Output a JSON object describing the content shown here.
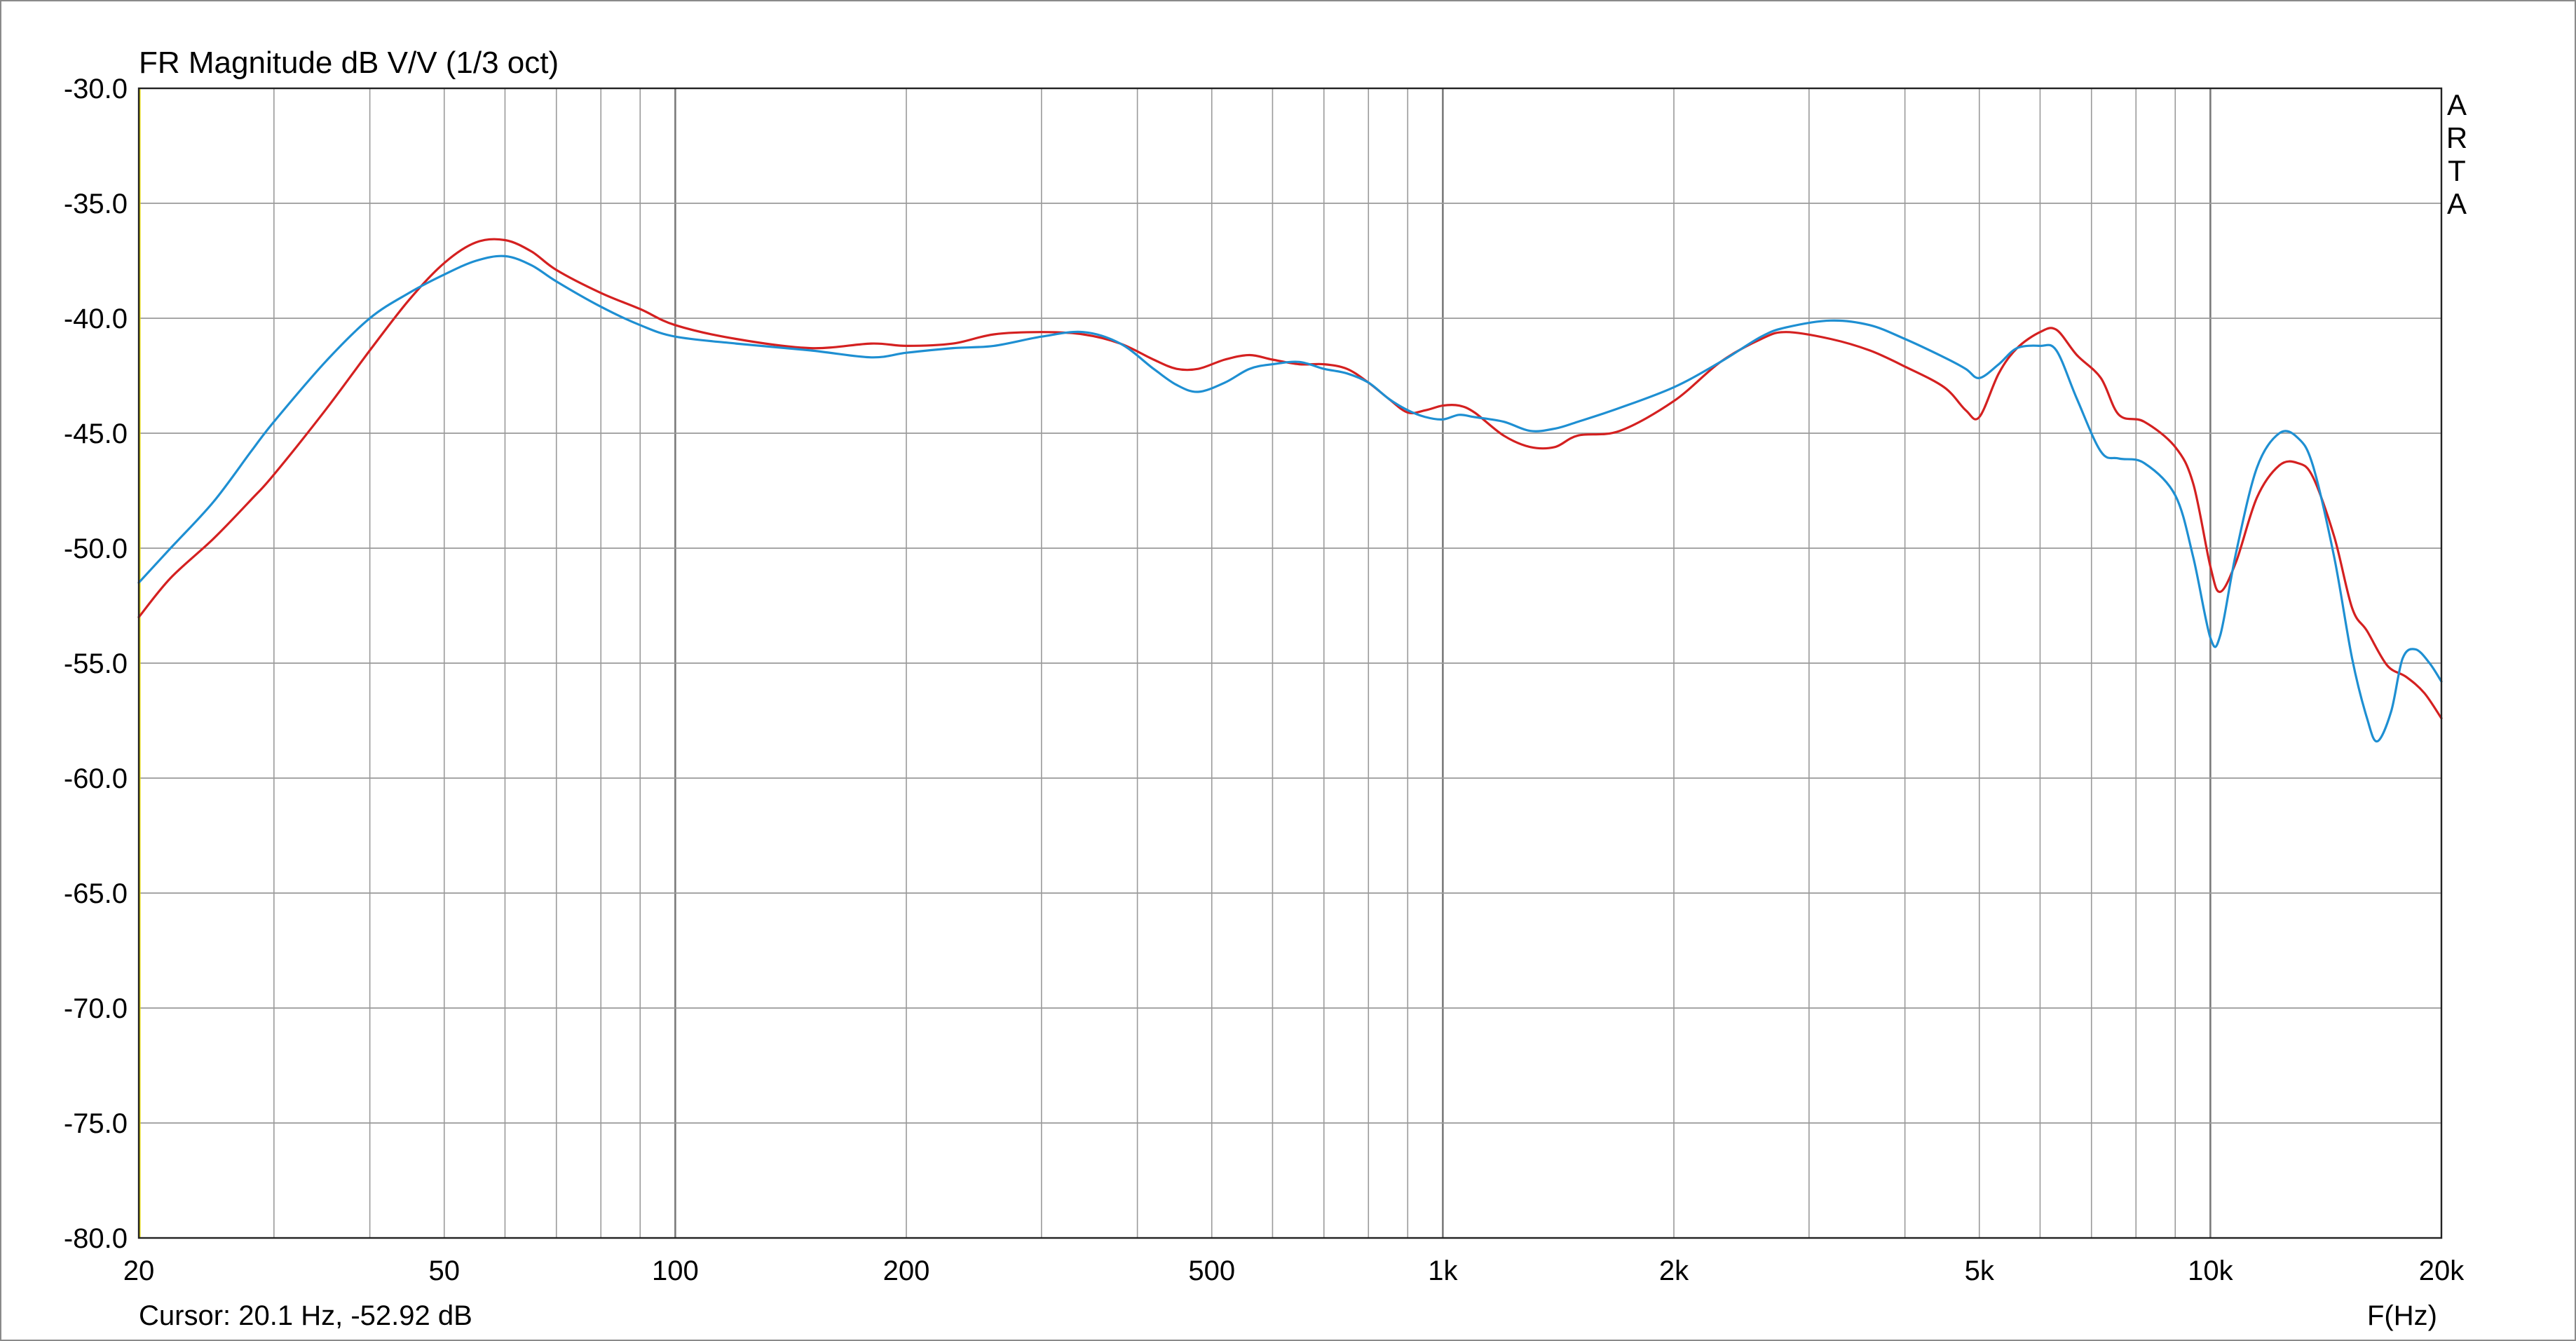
{
  "chart_data": {
    "type": "line",
    "title": "FR Magnitude dB V/V (1/3 oct)",
    "xlabel": "F(Hz)",
    "ylabel": "",
    "x_scale": "log",
    "xlim": [
      20,
      20000
    ],
    "ylim": [
      -80,
      -30
    ],
    "grid": true,
    "x_major_ticks": [
      100,
      1000,
      10000
    ],
    "x_minor_ticks": [
      30,
      40,
      50,
      60,
      70,
      80,
      90,
      200,
      300,
      400,
      500,
      600,
      700,
      800,
      900,
      2000,
      3000,
      4000,
      5000,
      6000,
      7000,
      8000,
      9000
    ],
    "x_tick_labels": [
      {
        "value": 20,
        "label": "20"
      },
      {
        "value": 50,
        "label": "50"
      },
      {
        "value": 100,
        "label": "100"
      },
      {
        "value": 200,
        "label": "200"
      },
      {
        "value": 500,
        "label": "500"
      },
      {
        "value": 1000,
        "label": "1k"
      },
      {
        "value": 2000,
        "label": "2k"
      },
      {
        "value": 5000,
        "label": "5k"
      },
      {
        "value": 10000,
        "label": "10k"
      },
      {
        "value": 20000,
        "label": "20k"
      }
    ],
    "y_ticks": [
      -30,
      -35,
      -40,
      -45,
      -50,
      -55,
      -60,
      -65,
      -70,
      -75,
      -80
    ],
    "y_tick_labels": [
      "-30.0",
      "-35.0",
      "-40.0",
      "-45.0",
      "-50.0",
      "-55.0",
      "-60.0",
      "-65.0",
      "-70.0",
      "-75.0",
      "-80.0"
    ],
    "series": [
      {
        "color": "#d42020",
        "points": [
          [
            20,
            -53.0
          ],
          [
            22,
            -51.3
          ],
          [
            25,
            -49.6
          ],
          [
            28,
            -47.9
          ],
          [
            30,
            -46.8
          ],
          [
            35,
            -44.0
          ],
          [
            40,
            -41.4
          ],
          [
            45,
            -39.2
          ],
          [
            50,
            -37.6
          ],
          [
            55,
            -36.7
          ],
          [
            60,
            -36.6
          ],
          [
            65,
            -37.1
          ],
          [
            70,
            -37.9
          ],
          [
            80,
            -38.9
          ],
          [
            90,
            -39.6
          ],
          [
            100,
            -40.3
          ],
          [
            120,
            -40.9
          ],
          [
            150,
            -41.3
          ],
          [
            180,
            -41.1
          ],
          [
            200,
            -41.2
          ],
          [
            230,
            -41.1
          ],
          [
            260,
            -40.7
          ],
          [
            300,
            -40.6
          ],
          [
            340,
            -40.7
          ],
          [
            380,
            -41.1
          ],
          [
            420,
            -41.8
          ],
          [
            450,
            -42.2
          ],
          [
            480,
            -42.2
          ],
          [
            520,
            -41.8
          ],
          [
            560,
            -41.6
          ],
          [
            600,
            -41.8
          ],
          [
            650,
            -42.0
          ],
          [
            700,
            -42.0
          ],
          [
            750,
            -42.2
          ],
          [
            800,
            -42.8
          ],
          [
            850,
            -43.5
          ],
          [
            900,
            -44.1
          ],
          [
            950,
            -44.0
          ],
          [
            1000,
            -43.8
          ],
          [
            1050,
            -43.8
          ],
          [
            1100,
            -44.1
          ],
          [
            1200,
            -45.1
          ],
          [
            1300,
            -45.6
          ],
          [
            1400,
            -45.6
          ],
          [
            1500,
            -45.1
          ],
          [
            1700,
            -44.9
          ],
          [
            2000,
            -43.6
          ],
          [
            2300,
            -41.9
          ],
          [
            2600,
            -40.9
          ],
          [
            2800,
            -40.6
          ],
          [
            3200,
            -40.9
          ],
          [
            3600,
            -41.4
          ],
          [
            4000,
            -42.1
          ],
          [
            4500,
            -43.0
          ],
          [
            4800,
            -44.0
          ],
          [
            5000,
            -44.3
          ],
          [
            5300,
            -42.4
          ],
          [
            5600,
            -41.3
          ],
          [
            6000,
            -40.6
          ],
          [
            6300,
            -40.5
          ],
          [
            6700,
            -41.6
          ],
          [
            7200,
            -42.6
          ],
          [
            7600,
            -44.2
          ],
          [
            8200,
            -44.5
          ],
          [
            9000,
            -45.6
          ],
          [
            9500,
            -47.2
          ],
          [
            10000,
            -50.8
          ],
          [
            10300,
            -51.9
          ],
          [
            10800,
            -50.6
          ],
          [
            11500,
            -47.8
          ],
          [
            12300,
            -46.4
          ],
          [
            13000,
            -46.3
          ],
          [
            13600,
            -46.9
          ],
          [
            14500,
            -49.5
          ],
          [
            15300,
            -52.6
          ],
          [
            16000,
            -53.6
          ],
          [
            17000,
            -55.1
          ],
          [
            18000,
            -55.6
          ],
          [
            19000,
            -56.3
          ],
          [
            20000,
            -57.4
          ]
        ]
      },
      {
        "color": "#1e8fd2",
        "points": [
          [
            20,
            -51.5
          ],
          [
            22,
            -50.0
          ],
          [
            25,
            -48.0
          ],
          [
            28,
            -45.8
          ],
          [
            30,
            -44.5
          ],
          [
            35,
            -41.9
          ],
          [
            40,
            -40.0
          ],
          [
            45,
            -38.9
          ],
          [
            50,
            -38.1
          ],
          [
            55,
            -37.5
          ],
          [
            60,
            -37.3
          ],
          [
            65,
            -37.7
          ],
          [
            70,
            -38.4
          ],
          [
            80,
            -39.5
          ],
          [
            90,
            -40.3
          ],
          [
            100,
            -40.8
          ],
          [
            120,
            -41.1
          ],
          [
            150,
            -41.4
          ],
          [
            180,
            -41.7
          ],
          [
            200,
            -41.5
          ],
          [
            230,
            -41.3
          ],
          [
            260,
            -41.2
          ],
          [
            300,
            -40.8
          ],
          [
            340,
            -40.6
          ],
          [
            380,
            -41.1
          ],
          [
            420,
            -42.2
          ],
          [
            450,
            -42.9
          ],
          [
            480,
            -43.2
          ],
          [
            520,
            -42.8
          ],
          [
            560,
            -42.2
          ],
          [
            600,
            -42.0
          ],
          [
            650,
            -41.9
          ],
          [
            700,
            -42.2
          ],
          [
            750,
            -42.4
          ],
          [
            800,
            -42.8
          ],
          [
            850,
            -43.5
          ],
          [
            900,
            -44.0
          ],
          [
            950,
            -44.3
          ],
          [
            1000,
            -44.4
          ],
          [
            1050,
            -44.2
          ],
          [
            1100,
            -44.3
          ],
          [
            1200,
            -44.5
          ],
          [
            1300,
            -44.9
          ],
          [
            1400,
            -44.8
          ],
          [
            1500,
            -44.5
          ],
          [
            1700,
            -43.9
          ],
          [
            2000,
            -43.0
          ],
          [
            2300,
            -41.9
          ],
          [
            2600,
            -40.8
          ],
          [
            2800,
            -40.4
          ],
          [
            3200,
            -40.1
          ],
          [
            3600,
            -40.3
          ],
          [
            4000,
            -40.9
          ],
          [
            4500,
            -41.7
          ],
          [
            4800,
            -42.2
          ],
          [
            5000,
            -42.6
          ],
          [
            5300,
            -42.0
          ],
          [
            5600,
            -41.3
          ],
          [
            6000,
            -41.2
          ],
          [
            6300,
            -41.4
          ],
          [
            6700,
            -43.5
          ],
          [
            7200,
            -45.8
          ],
          [
            7600,
            -46.1
          ],
          [
            8200,
            -46.3
          ],
          [
            9000,
            -47.7
          ],
          [
            9500,
            -50.4
          ],
          [
            10000,
            -53.9
          ],
          [
            10300,
            -53.8
          ],
          [
            10800,
            -50.2
          ],
          [
            11500,
            -46.5
          ],
          [
            12300,
            -45.0
          ],
          [
            13000,
            -45.2
          ],
          [
            13600,
            -46.4
          ],
          [
            14500,
            -50.4
          ],
          [
            15300,
            -54.8
          ],
          [
            16000,
            -57.4
          ],
          [
            16500,
            -58.4
          ],
          [
            17200,
            -57.1
          ],
          [
            17800,
            -54.8
          ],
          [
            18500,
            -54.4
          ],
          [
            19300,
            -55.0
          ],
          [
            20000,
            -55.8
          ]
        ]
      }
    ]
  },
  "header": {
    "title": "FR Magnitude dB V/V (1/3 oct)",
    "watermark": [
      "A",
      "R",
      "T",
      "A"
    ]
  },
  "footer": {
    "cursor_readout": "Cursor: 20.1 Hz, -52.92 dB",
    "xlabel": "F(Hz)"
  },
  "colors": {
    "background": "#ffffff",
    "plot_background": "#ffffff",
    "grid": "#9a9a9a",
    "grid_major": "#7a7a7a",
    "cursor_line": "#e6d800",
    "frame": "#8a8a8a"
  }
}
